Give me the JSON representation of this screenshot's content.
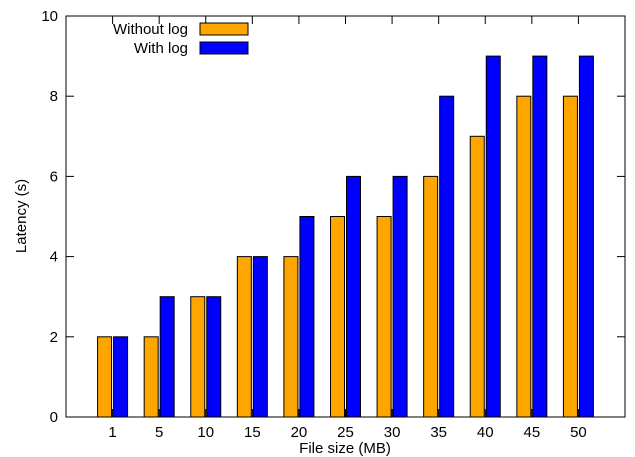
{
  "chart_data": {
    "type": "bar",
    "title": "",
    "xlabel": "File size (MB)",
    "ylabel": "Latency (s)",
    "categories": [
      "1",
      "5",
      "10",
      "15",
      "20",
      "25",
      "30",
      "35",
      "40",
      "45",
      "50"
    ],
    "series": [
      {
        "name": "Without log",
        "color": "#FFA500",
        "values": [
          2,
          2,
          3,
          4,
          4,
          5,
          5,
          6,
          7,
          8,
          8
        ]
      },
      {
        "name": "With log",
        "color": "#0000FF",
        "values": [
          2,
          3,
          3,
          4,
          5,
          6,
          6,
          8,
          9,
          9,
          9
        ]
      }
    ],
    "ylim": [
      0,
      10
    ],
    "yticks": [
      "0",
      "2",
      "4",
      "6",
      "8",
      "10"
    ],
    "grid": false,
    "legend_position": "top-left"
  }
}
